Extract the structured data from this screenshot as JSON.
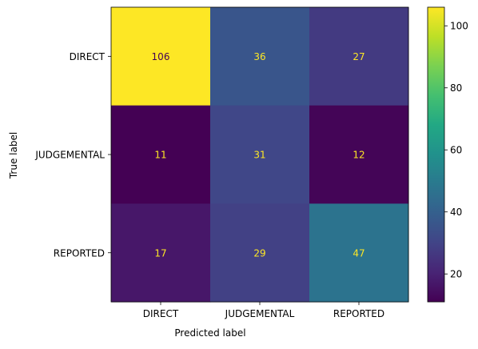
{
  "chart_data": {
    "type": "heatmap",
    "title": "",
    "xlabel": "Predicted label",
    "ylabel": "True label",
    "x_categories": [
      "DIRECT",
      "JUDGEMENTAL",
      "REPORTED"
    ],
    "y_categories": [
      "DIRECT",
      "JUDGEMENTAL",
      "REPORTED"
    ],
    "matrix": [
      [
        106,
        36,
        27
      ],
      [
        11,
        31,
        12
      ],
      [
        17,
        29,
        47
      ]
    ],
    "colormap": "viridis",
    "colorbar": {
      "min": 11,
      "max": 106,
      "ticks": [
        20,
        40,
        60,
        80,
        100
      ]
    },
    "text_color_light": "#fde725",
    "text_color_dark": "#440154",
    "grid": false,
    "legend": "none"
  }
}
